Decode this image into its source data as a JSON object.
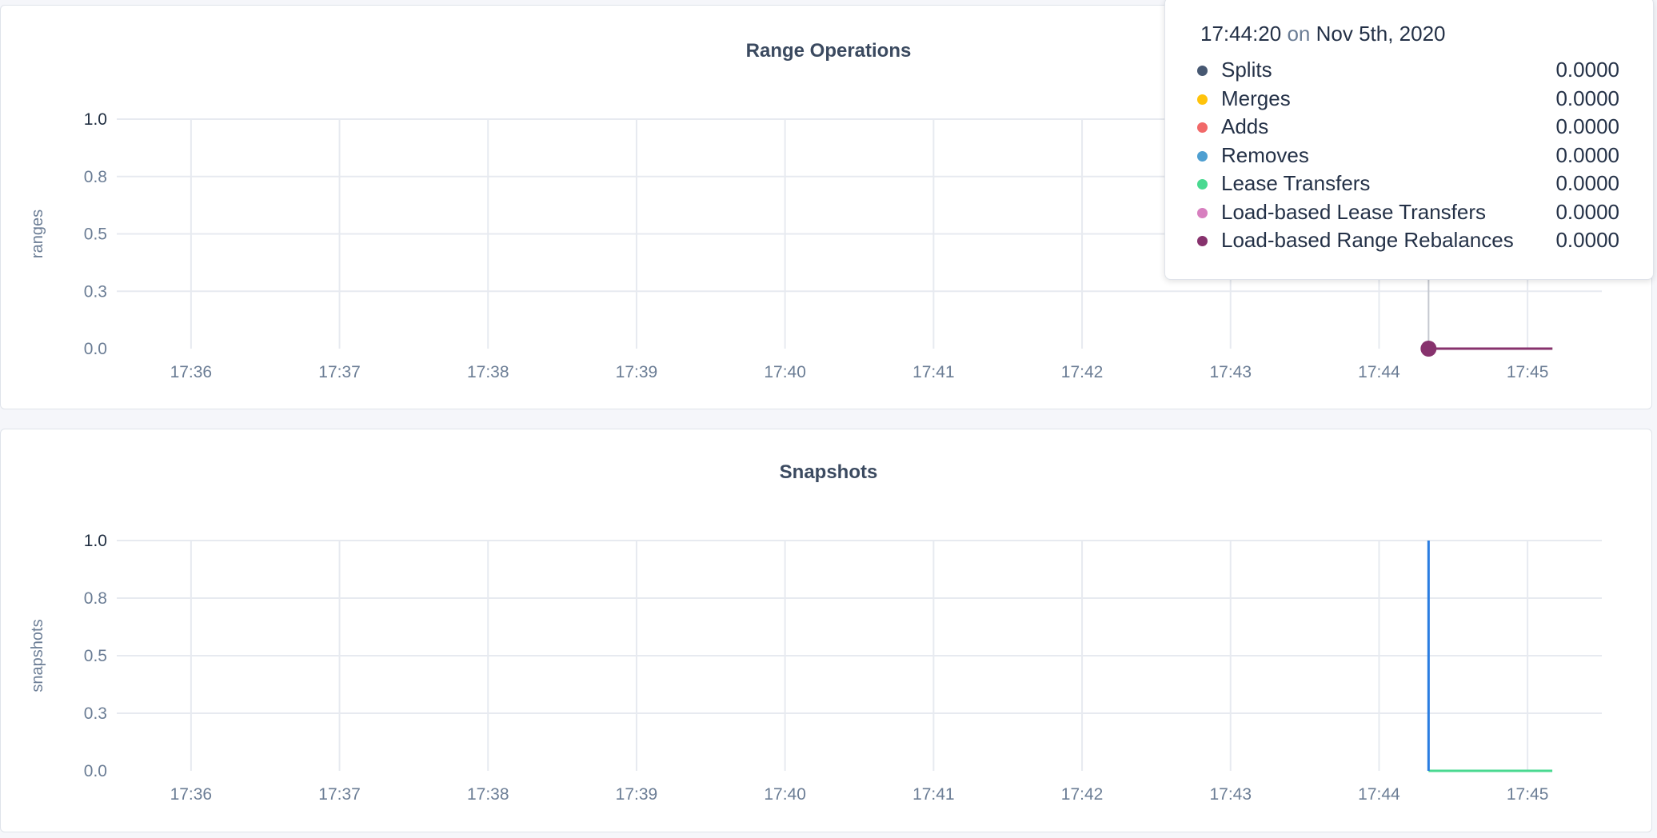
{
  "chart_data": [
    {
      "type": "line",
      "title": "Range Operations",
      "ylabel": "ranges",
      "ylim": [
        0,
        1
      ],
      "yticks": [
        0,
        0.25,
        0.5,
        0.75,
        1
      ],
      "ytick_labels": [
        "0.0",
        "0.3",
        "0.5",
        "0.8",
        "1.0"
      ],
      "xlim": [
        "17:35:30",
        "17:45:30"
      ],
      "xticks": [
        "17:36",
        "17:37",
        "17:38",
        "17:39",
        "17:40",
        "17:41",
        "17:42",
        "17:43",
        "17:44",
        "17:45"
      ],
      "grid": true,
      "hover_time": "17:44:20",
      "series": [
        {
          "color": "#475872",
          "points": [
            [
              "17:44:20",
              0
            ],
            [
              "17:45:10",
              0
            ]
          ]
        },
        {
          "color": "#ffc30b",
          "points": [
            [
              "17:44:20",
              0
            ],
            [
              "17:45:10",
              0
            ]
          ]
        },
        {
          "color": "#f16969",
          "points": [
            [
              "17:44:20",
              0
            ],
            [
              "17:45:10",
              0
            ]
          ]
        },
        {
          "color": "#4e9fd1",
          "points": [
            [
              "17:44:20",
              0
            ],
            [
              "17:45:10",
              0
            ]
          ]
        },
        {
          "color": "#49d990",
          "points": [
            [
              "17:44:20",
              0
            ],
            [
              "17:45:10",
              0
            ]
          ]
        },
        {
          "color": "#d77fbf",
          "points": [
            [
              "17:44:20",
              0
            ],
            [
              "17:45:10",
              0
            ]
          ]
        },
        {
          "color": "#87326d",
          "points": [
            [
              "17:44:20",
              0
            ],
            [
              "17:45:10",
              0
            ]
          ]
        }
      ]
    },
    {
      "type": "line",
      "title": "Snapshots",
      "ylabel": "snapshots",
      "ylim": [
        0,
        1
      ],
      "yticks": [
        0,
        0.25,
        0.5,
        0.75,
        1
      ],
      "ytick_labels": [
        "0.0",
        "0.3",
        "0.5",
        "0.8",
        "1.0"
      ],
      "xlim": [
        "17:35:30",
        "17:45:30"
      ],
      "xticks": [
        "17:36",
        "17:37",
        "17:38",
        "17:39",
        "17:40",
        "17:41",
        "17:42",
        "17:43",
        "17:44",
        "17:45"
      ],
      "grid": true,
      "series": [
        {
          "color": "#49d990",
          "points": [
            [
              "17:44:20",
              0
            ],
            [
              "17:45:10",
              0
            ]
          ]
        },
        {
          "color": "#2a7de1",
          "points": [
            [
              "17:44:20",
              1
            ],
            [
              "17:44:20",
              0
            ]
          ]
        }
      ]
    }
  ],
  "tooltip": {
    "time": "17:44:20",
    "on": "on",
    "date": "Nov 5th, 2020",
    "rows": [
      {
        "label": "Splits",
        "value": "0.0000",
        "color": "#475872"
      },
      {
        "label": "Merges",
        "value": "0.0000",
        "color": "#ffc30b"
      },
      {
        "label": "Adds",
        "value": "0.0000",
        "color": "#f16969"
      },
      {
        "label": "Removes",
        "value": "0.0000",
        "color": "#4e9fd1"
      },
      {
        "label": "Lease Transfers",
        "value": "0.0000",
        "color": "#49d990"
      },
      {
        "label": "Load-based Lease Transfers",
        "value": "0.0000",
        "color": "#d77fbf"
      },
      {
        "label": "Load-based Range Rebalances",
        "value": "0.0000",
        "color": "#87326d"
      }
    ]
  }
}
